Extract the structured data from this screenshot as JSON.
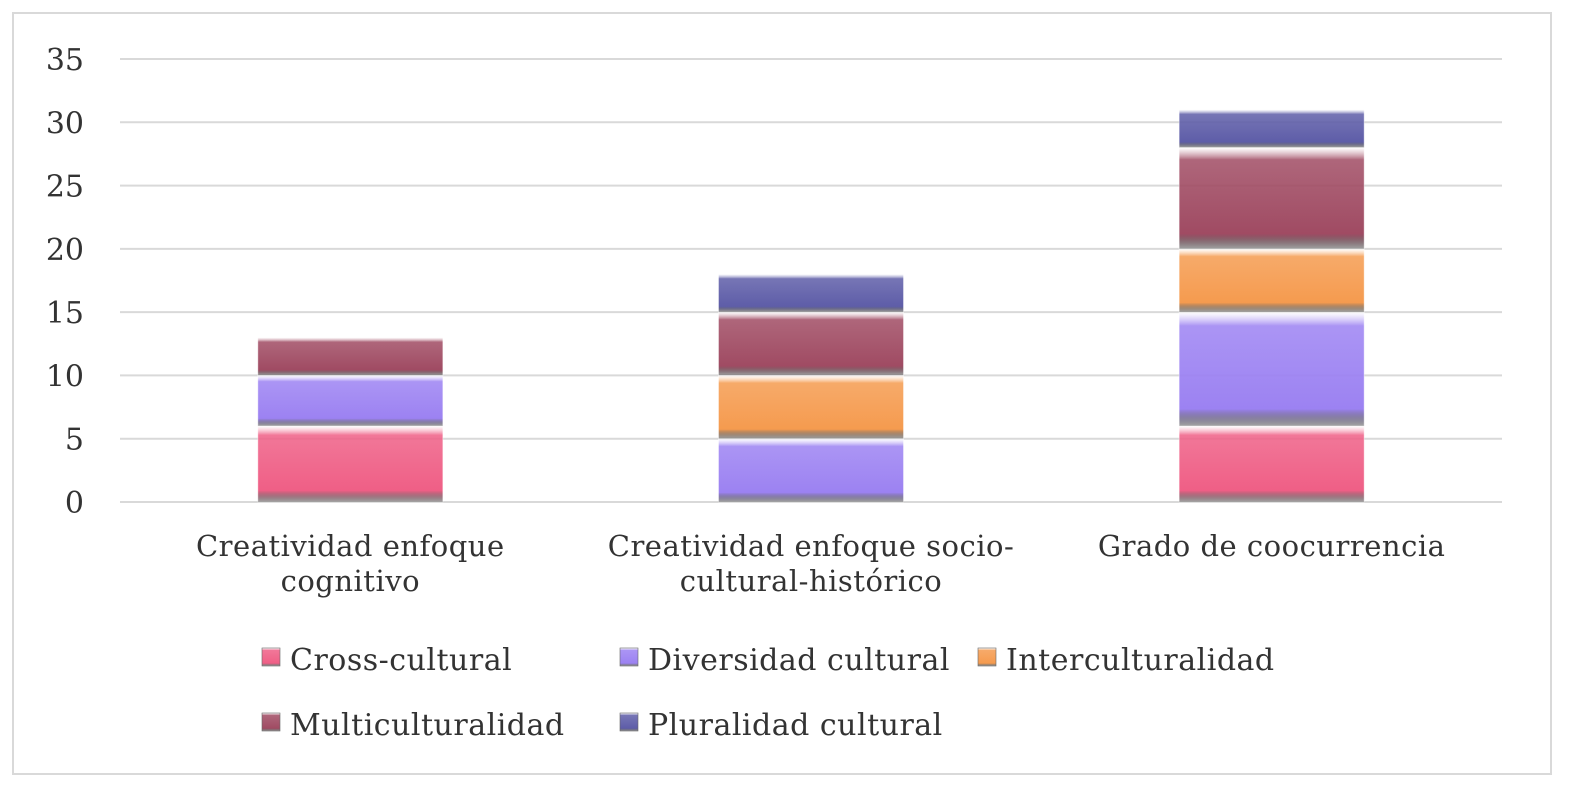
{
  "chart_data": {
    "type": "bar",
    "stacked": true,
    "categories": [
      "Creatividad enfoque cognitivo",
      "Creatividad enfoque socio-cultural-histórico",
      "Grado de coocurrencia"
    ],
    "category_lines": [
      [
        "Creatividad enfoque",
        "cognitivo"
      ],
      [
        "Creatividad enfoque socio-",
        "cultural-histórico"
      ],
      [
        "Grado de coocurrencia"
      ]
    ],
    "series": [
      {
        "name": "Cross-cultural",
        "values": [
          6,
          0,
          6
        ],
        "color": "#ef5f86"
      },
      {
        "name": "Diversidad cultural",
        "values": [
          4,
          5,
          9
        ],
        "color": "#9c82f2"
      },
      {
        "name": "Interculturalidad",
        "values": [
          0,
          5,
          5
        ],
        "color": "#f59b4f"
      },
      {
        "name": "Multiculturalidad",
        "values": [
          3,
          5,
          8
        ],
        "color": "#a04b63"
      },
      {
        "name": "Pluralidad cultural",
        "values": [
          0,
          3,
          3
        ],
        "color": "#5e5da8"
      }
    ],
    "ylim": [
      0,
      35
    ],
    "yticks": [
      0,
      5,
      10,
      15,
      20,
      25,
      30,
      35
    ],
    "grid": true,
    "legend": "bottom"
  }
}
